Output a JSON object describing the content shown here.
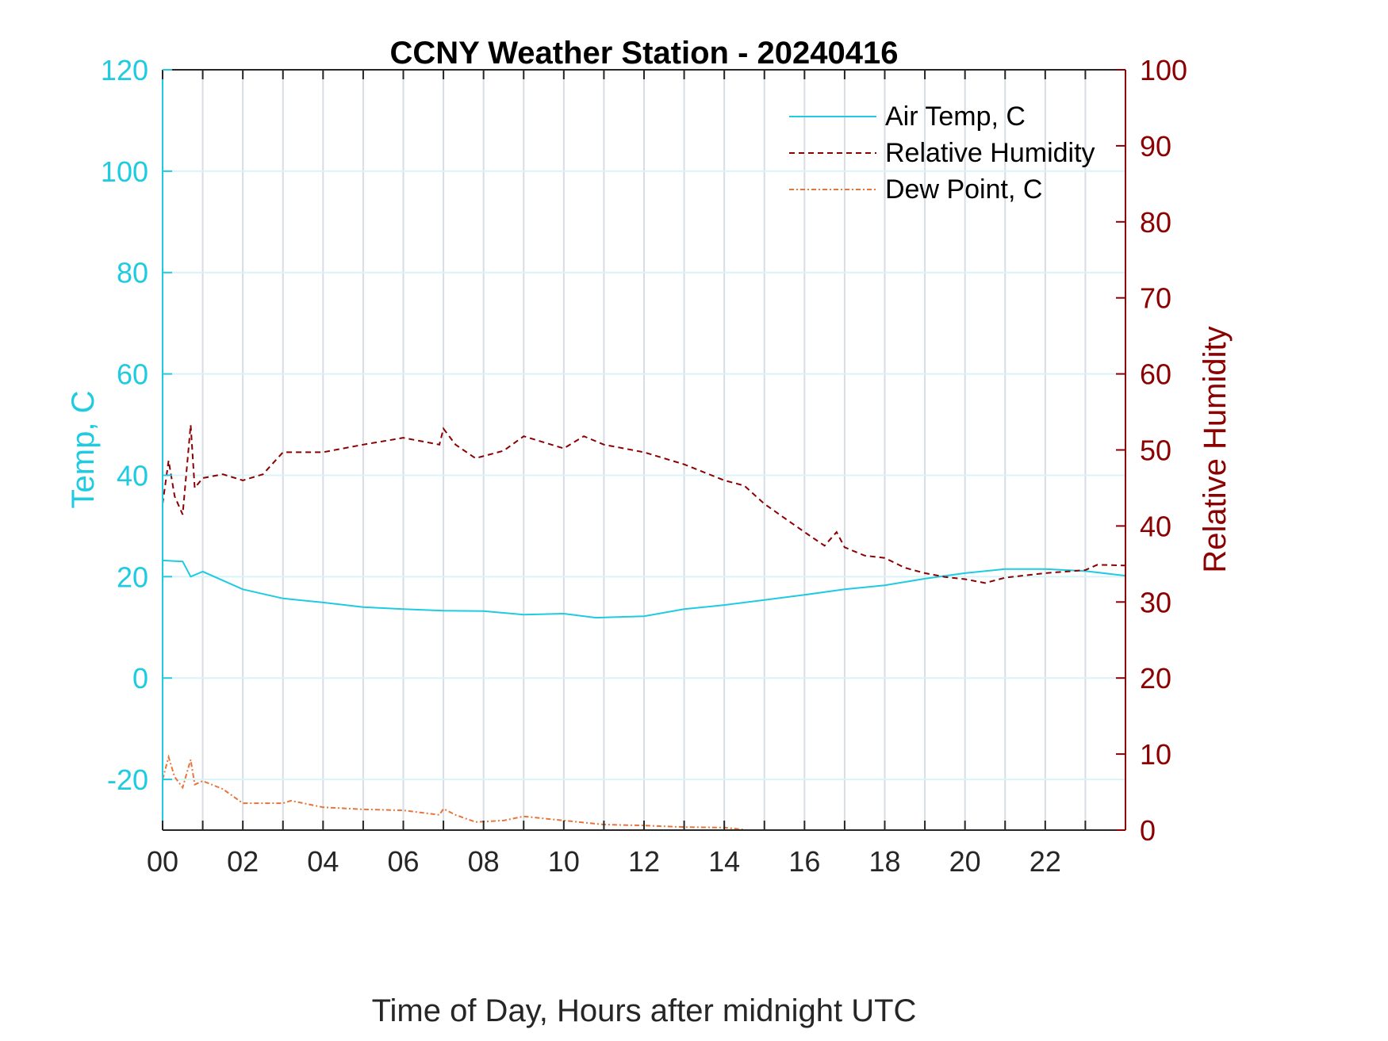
{
  "chart_data": {
    "type": "line",
    "title": "CCNY Weather Station - 20240416",
    "xlabel": "Time of Day, Hours after midnight UTC",
    "ylabel_left": "Temp, C",
    "ylabel_right": "Relative Humidity",
    "xlim": [
      0,
      24
    ],
    "ylim_left": [
      -30,
      120
    ],
    "ylim_right": [
      0,
      100
    ],
    "x_tick_labels": [
      "00",
      "02",
      "04",
      "06",
      "08",
      "10",
      "12",
      "14",
      "16",
      "18",
      "20",
      "22"
    ],
    "x_tick_values": [
      0,
      2,
      4,
      6,
      8,
      10,
      12,
      14,
      16,
      18,
      20,
      22
    ],
    "y_left_ticks": [
      -20,
      0,
      20,
      40,
      60,
      80,
      100,
      120
    ],
    "y_right_ticks": [
      0,
      10,
      20,
      30,
      40,
      50,
      60,
      70,
      80,
      90,
      100
    ],
    "grid": true,
    "legend_position": "top-right",
    "colors": {
      "left_axis": "#1ecbe1",
      "right_axis": "#8b0000",
      "air_temp": "#1ecbe1",
      "rh": "#8b0000",
      "dew_point": "#e8743b"
    },
    "series": [
      {
        "name": "Air Temp, C",
        "axis": "left",
        "style": "solid",
        "x": [
          0,
          0.5,
          0.7,
          1,
          2,
          3,
          4,
          5,
          6,
          7,
          8,
          9,
          10,
          10.8,
          12,
          13,
          14,
          15,
          16,
          17,
          18,
          19,
          20,
          21,
          22,
          23,
          24
        ],
        "y": [
          23.2,
          23,
          20,
          21,
          17.5,
          15.7,
          14.9,
          14,
          13.6,
          13.3,
          13.2,
          12.5,
          12.7,
          11.9,
          12.2,
          13.6,
          14.4,
          15.4,
          16.4,
          17.5,
          18.3,
          19.6,
          20.7,
          21.5,
          21.5,
          21.1,
          20.2
        ]
      },
      {
        "name": "Relative Humidity",
        "axis": "right",
        "style": "dashed",
        "x": [
          0,
          0.15,
          0.3,
          0.5,
          0.7,
          0.8,
          1,
          1.5,
          2,
          2.5,
          3,
          4,
          5,
          6,
          6.9,
          7,
          7.3,
          7.8,
          8.5,
          9,
          10,
          10.5,
          11,
          12,
          13,
          14,
          14.5,
          15,
          16,
          16.5,
          16.8,
          17,
          17.5,
          18,
          18.5,
          19,
          19.5,
          20,
          20.5,
          21,
          22,
          23,
          23.3,
          24
        ],
        "y": [
          42.9,
          48.6,
          43.9,
          41.5,
          53.3,
          45,
          46.3,
          46.8,
          46,
          46.8,
          49.7,
          49.7,
          50.7,
          51.6,
          50.7,
          52.8,
          50.7,
          48.9,
          49.9,
          51.8,
          50.2,
          51.8,
          50.7,
          49.7,
          48.1,
          46,
          45.3,
          42.9,
          39.2,
          37.4,
          39.2,
          37.2,
          36.1,
          35.8,
          34.5,
          33.8,
          33.3,
          33,
          32.5,
          33.2,
          33.8,
          34.2,
          34.9,
          34.8
        ]
      },
      {
        "name": "Dew Point, C",
        "axis": "left",
        "style": "dashdot",
        "x": [
          0,
          0.15,
          0.3,
          0.5,
          0.7,
          0.8,
          1,
          1.5,
          2,
          3,
          3.2,
          4,
          5,
          6,
          6.9,
          7,
          7.3,
          7.8,
          8.5,
          9,
          10,
          11,
          12,
          13,
          14,
          14.5
        ],
        "y": [
          -20,
          -15.6,
          -19.5,
          -21.6,
          -16.1,
          -21,
          -20.3,
          -21.9,
          -24.7,
          -24.7,
          -24.2,
          -25.5,
          -25.9,
          -26.1,
          -27,
          -25.8,
          -27,
          -28.4,
          -28.1,
          -27.3,
          -28.1,
          -28.9,
          -29.1,
          -29.4,
          -29.5,
          -29.9
        ]
      }
    ]
  }
}
